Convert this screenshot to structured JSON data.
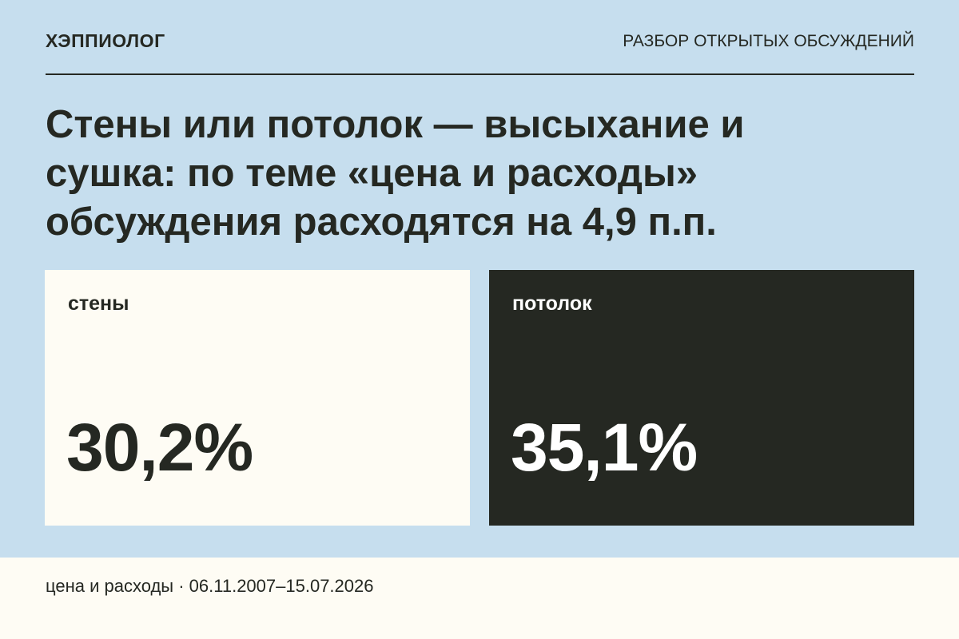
{
  "header": {
    "brand": "ХЭППИОЛОГ",
    "section": "РАЗБОР ОТКРЫТЫХ ОБСУЖДЕНИЙ"
  },
  "headline": {
    "line1": "Стены или потолок — высыхание и",
    "line2": "сушка: по теме «цена и расходы»",
    "line3": "обсуждения расходятся на 4,9 п.п."
  },
  "cards": [
    {
      "label": "стены",
      "value": "30,2%",
      "background": "#fefcf4",
      "text_color": "#252822"
    },
    {
      "label": "потолок",
      "value": "35,1%",
      "background": "#252822",
      "text_color": "#ffffff"
    }
  ],
  "footer": {
    "text": "цена и расходы · 06.11.2007–15.07.2026"
  },
  "colors": {
    "background": "#c6deee",
    "dark": "#252822",
    "light": "#fefcf4"
  }
}
